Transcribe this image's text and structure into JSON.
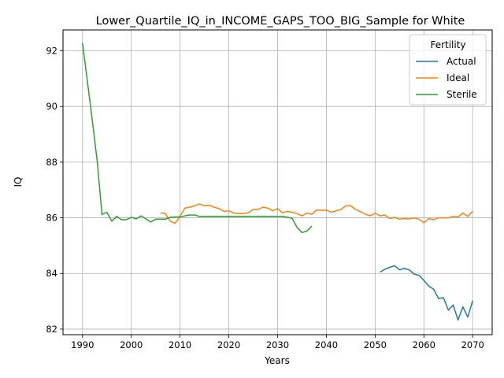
{
  "chart_data": {
    "type": "line",
    "title": "Lower_Quartile_IQ_in_INCOME_GAPS_TOO_BIG_Sample for White",
    "xlabel": "Years",
    "ylabel": "IQ",
    "xlim": [
      1986,
      2074
    ],
    "ylim": [
      81.8,
      92.75
    ],
    "xticks": [
      1990,
      2000,
      2010,
      2020,
      2030,
      2040,
      2050,
      2060,
      2070
    ],
    "yticks": [
      82,
      84,
      86,
      88,
      90,
      92
    ],
    "grid": true,
    "legend": {
      "title": "Fertility",
      "position": "top-right"
    },
    "series": [
      {
        "name": "Actual",
        "color": "#1f77b4",
        "x": [
          2051,
          2052,
          2053,
          2054,
          2055,
          2056,
          2057,
          2058,
          2059,
          2060,
          2061,
          2062,
          2063,
          2064,
          2065,
          2066,
          2067,
          2068,
          2069,
          2070
        ],
        "y": [
          84.05,
          84.15,
          84.22,
          84.28,
          84.13,
          84.18,
          84.13,
          83.98,
          83.93,
          83.75,
          83.55,
          83.43,
          83.1,
          83.13,
          82.68,
          82.87,
          82.33,
          82.8,
          82.43,
          83.02
        ]
      },
      {
        "name": "Ideal",
        "color": "#ff7f0e",
        "x": [
          2006,
          2007,
          2008,
          2009,
          2010,
          2011,
          2012,
          2013,
          2014,
          2015,
          2016,
          2017,
          2018,
          2019,
          2020,
          2021,
          2022,
          2023,
          2024,
          2025,
          2026,
          2027,
          2028,
          2029,
          2030,
          2031,
          2032,
          2033,
          2034,
          2035,
          2036,
          2037,
          2038,
          2039,
          2040,
          2041,
          2042,
          2043,
          2044,
          2045,
          2046,
          2047,
          2048,
          2049,
          2050,
          2051,
          2052,
          2053,
          2054,
          2055,
          2056,
          2057,
          2058,
          2059,
          2060,
          2061,
          2062,
          2063,
          2064,
          2065,
          2066,
          2067,
          2068,
          2069,
          2070
        ],
        "y": [
          86.18,
          86.15,
          85.88,
          85.8,
          86.05,
          86.35,
          86.38,
          86.43,
          86.5,
          86.43,
          86.45,
          86.38,
          86.33,
          86.23,
          86.25,
          86.17,
          86.15,
          86.15,
          86.18,
          86.3,
          86.3,
          86.38,
          86.35,
          86.25,
          86.33,
          86.18,
          86.23,
          86.2,
          86.15,
          86.07,
          86.17,
          86.13,
          86.28,
          86.27,
          86.28,
          86.2,
          86.25,
          86.3,
          86.43,
          86.43,
          86.3,
          86.22,
          86.13,
          86.07,
          86.17,
          86.07,
          86.1,
          85.97,
          86.02,
          85.95,
          85.97,
          85.96,
          86.0,
          85.95,
          85.82,
          85.97,
          85.93,
          86.0,
          86.0,
          86.0,
          86.05,
          86.03,
          86.17,
          86.05,
          86.23
        ]
      },
      {
        "name": "Sterile",
        "color": "#2ca02c",
        "x": [
          1990,
          1991,
          1992,
          1993,
          1994,
          1995,
          1996,
          1997,
          1998,
          1999,
          2000,
          2001,
          2002,
          2003,
          2004,
          2005,
          2006,
          2007,
          2008,
          2009,
          2010,
          2011,
          2012,
          2013,
          2014,
          2015,
          2016,
          2017,
          2018,
          2019,
          2020,
          2021,
          2022,
          2023,
          2024,
          2025,
          2026,
          2027,
          2028,
          2029,
          2030,
          2031,
          2032,
          2033,
          2034,
          2035,
          2036,
          2037
        ],
        "y": [
          92.28,
          90.9,
          89.5,
          88.05,
          86.12,
          86.2,
          85.88,
          86.05,
          85.93,
          85.93,
          86.02,
          85.96,
          86.07,
          85.96,
          85.85,
          85.95,
          85.95,
          85.95,
          86.02,
          86.03,
          86.03,
          86.07,
          86.1,
          86.1,
          86.05,
          86.05,
          86.05,
          86.05,
          86.05,
          86.05,
          86.05,
          86.05,
          86.05,
          86.05,
          86.05,
          86.05,
          86.05,
          86.05,
          86.05,
          86.05,
          86.05,
          86.05,
          86.02,
          85.98,
          85.65,
          85.47,
          85.52,
          85.7
        ]
      }
    ]
  }
}
